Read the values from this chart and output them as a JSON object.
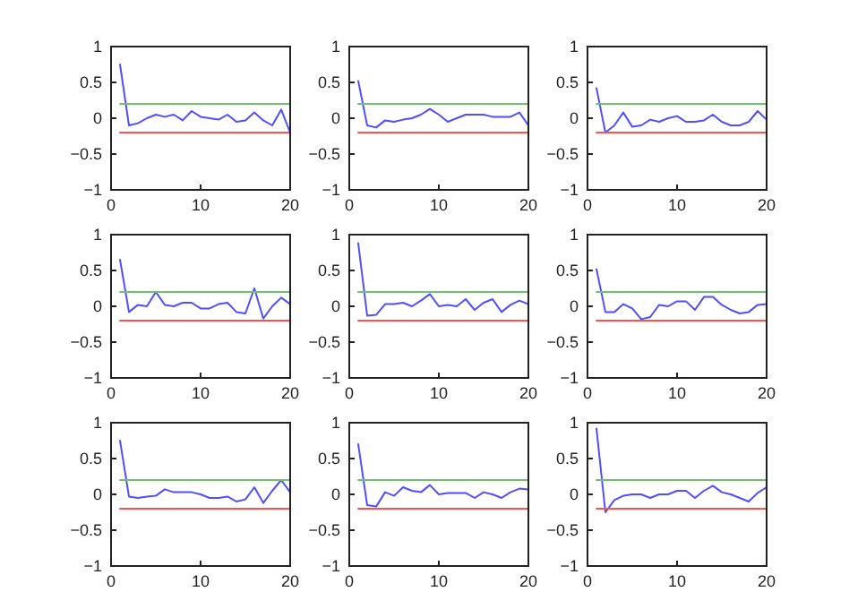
{
  "chart_data": [
    {
      "type": "line",
      "xlim": [
        0,
        20
      ],
      "xticks": [
        0,
        10,
        20
      ],
      "ylim": [
        -1,
        1
      ],
      "yticks": [
        -1,
        -0.5,
        0,
        0.5,
        1
      ],
      "series": [
        {
          "color": "#4f4fff",
          "x": [
            1,
            2,
            3,
            4,
            5,
            6,
            7,
            8,
            9,
            10,
            11,
            12,
            13,
            14,
            15,
            16,
            17,
            18,
            19,
            20
          ],
          "values": [
            0.75,
            -0.1,
            -0.07,
            0.0,
            0.05,
            0.02,
            0.05,
            -0.03,
            0.1,
            0.02,
            0.0,
            -0.02,
            0.05,
            -0.05,
            -0.03,
            0.08,
            -0.03,
            -0.1,
            0.12,
            -0.2
          ]
        },
        {
          "color": "#70c070",
          "x": [
            1,
            20
          ],
          "values": [
            0.2,
            0.2
          ]
        },
        {
          "color": "#ff5050",
          "x": [
            1,
            20
          ],
          "values": [
            -0.2,
            -0.2
          ]
        }
      ]
    },
    {
      "type": "line",
      "xlim": [
        0,
        20
      ],
      "xticks": [
        0,
        10,
        20
      ],
      "ylim": [
        -1,
        1
      ],
      "yticks": [
        -1,
        -0.5,
        0,
        0.5,
        1
      ],
      "series": [
        {
          "color": "#4f4fff",
          "x": [
            1,
            2,
            3,
            4,
            5,
            6,
            7,
            8,
            9,
            10,
            11,
            12,
            13,
            14,
            15,
            16,
            17,
            18,
            19,
            20
          ],
          "values": [
            0.52,
            -0.1,
            -0.13,
            -0.03,
            -0.05,
            -0.02,
            0.0,
            0.05,
            0.13,
            0.05,
            -0.05,
            0.0,
            0.05,
            0.05,
            0.05,
            0.02,
            0.02,
            0.02,
            0.08,
            -0.1
          ]
        },
        {
          "color": "#70c070",
          "x": [
            1,
            20
          ],
          "values": [
            0.2,
            0.2
          ]
        },
        {
          "color": "#ff5050",
          "x": [
            1,
            20
          ],
          "values": [
            -0.2,
            -0.2
          ]
        }
      ]
    },
    {
      "type": "line",
      "xlim": [
        0,
        20
      ],
      "xticks": [
        0,
        10,
        20
      ],
      "ylim": [
        -1,
        1
      ],
      "yticks": [
        -1,
        -0.5,
        0,
        0.5,
        1
      ],
      "series": [
        {
          "color": "#4f4fff",
          "x": [
            1,
            2,
            3,
            4,
            5,
            6,
            7,
            8,
            9,
            10,
            11,
            12,
            13,
            14,
            15,
            16,
            17,
            18,
            19,
            20
          ],
          "values": [
            0.42,
            -0.2,
            -0.1,
            0.08,
            -0.12,
            -0.1,
            -0.02,
            -0.05,
            0.0,
            0.03,
            -0.05,
            -0.05,
            -0.03,
            0.05,
            -0.05,
            -0.1,
            -0.1,
            -0.05,
            0.1,
            -0.02
          ]
        },
        {
          "color": "#70c070",
          "x": [
            1,
            20
          ],
          "values": [
            0.2,
            0.2
          ]
        },
        {
          "color": "#ff5050",
          "x": [
            1,
            20
          ],
          "values": [
            -0.2,
            -0.2
          ]
        }
      ]
    },
    {
      "type": "line",
      "xlim": [
        0,
        20
      ],
      "xticks": [
        0,
        10,
        20
      ],
      "ylim": [
        -1,
        1
      ],
      "yticks": [
        -1,
        -0.5,
        0,
        0.5,
        1
      ],
      "series": [
        {
          "color": "#4f4fff",
          "x": [
            1,
            2,
            3,
            4,
            5,
            6,
            7,
            8,
            9,
            10,
            11,
            12,
            13,
            14,
            15,
            16,
            17,
            18,
            19,
            20
          ],
          "values": [
            0.65,
            -0.08,
            0.02,
            0.0,
            0.2,
            0.02,
            0.0,
            0.05,
            0.05,
            -0.03,
            -0.03,
            0.03,
            0.05,
            -0.08,
            -0.1,
            0.25,
            -0.17,
            0.0,
            0.12,
            0.03
          ]
        },
        {
          "color": "#70c070",
          "x": [
            1,
            20
          ],
          "values": [
            0.2,
            0.2
          ]
        },
        {
          "color": "#ff5050",
          "x": [
            1,
            20
          ],
          "values": [
            -0.2,
            -0.2
          ]
        }
      ]
    },
    {
      "type": "line",
      "xlim": [
        0,
        20
      ],
      "xticks": [
        0,
        10,
        20
      ],
      "ylim": [
        -1,
        1
      ],
      "yticks": [
        -1,
        -0.5,
        0,
        0.5,
        1
      ],
      "series": [
        {
          "color": "#4f4fff",
          "x": [
            1,
            2,
            3,
            4,
            5,
            6,
            7,
            8,
            9,
            10,
            11,
            12,
            13,
            14,
            15,
            16,
            17,
            18,
            19,
            20
          ],
          "values": [
            0.88,
            -0.13,
            -0.12,
            0.03,
            0.03,
            0.05,
            0.0,
            0.08,
            0.17,
            0.0,
            0.02,
            0.0,
            0.1,
            -0.05,
            0.05,
            0.1,
            -0.08,
            0.02,
            0.08,
            0.03
          ]
        },
        {
          "color": "#70c070",
          "x": [
            1,
            20
          ],
          "values": [
            0.2,
            0.2
          ]
        },
        {
          "color": "#ff5050",
          "x": [
            1,
            20
          ],
          "values": [
            -0.2,
            -0.2
          ]
        }
      ]
    },
    {
      "type": "line",
      "xlim": [
        0,
        20
      ],
      "xticks": [
        0,
        10,
        20
      ],
      "ylim": [
        -1,
        1
      ],
      "yticks": [
        -1,
        -0.5,
        0,
        0.5,
        1
      ],
      "series": [
        {
          "color": "#4f4fff",
          "x": [
            1,
            2,
            3,
            4,
            5,
            6,
            7,
            8,
            9,
            10,
            11,
            12,
            13,
            14,
            15,
            16,
            17,
            18,
            19,
            20
          ],
          "values": [
            0.52,
            -0.08,
            -0.08,
            0.03,
            -0.03,
            -0.18,
            -0.15,
            0.02,
            0.0,
            0.07,
            0.07,
            -0.05,
            0.13,
            0.13,
            0.02,
            -0.05,
            -0.1,
            -0.08,
            0.02,
            0.03
          ]
        },
        {
          "color": "#70c070",
          "x": [
            1,
            20
          ],
          "values": [
            0.2,
            0.2
          ]
        },
        {
          "color": "#ff5050",
          "x": [
            1,
            20
          ],
          "values": [
            -0.2,
            -0.2
          ]
        }
      ]
    },
    {
      "type": "line",
      "xlim": [
        0,
        20
      ],
      "xticks": [
        0,
        10,
        20
      ],
      "ylim": [
        -1,
        1
      ],
      "yticks": [
        -1,
        -0.5,
        0,
        0.5,
        1
      ],
      "series": [
        {
          "color": "#4f4fff",
          "x": [
            1,
            2,
            3,
            4,
            5,
            6,
            7,
            8,
            9,
            10,
            11,
            12,
            13,
            14,
            15,
            16,
            17,
            18,
            19,
            20
          ],
          "values": [
            0.75,
            -0.03,
            -0.05,
            -0.03,
            -0.02,
            0.07,
            0.03,
            0.03,
            0.03,
            0.0,
            -0.05,
            -0.05,
            -0.03,
            -0.1,
            -0.07,
            0.1,
            -0.12,
            0.05,
            0.2,
            0.03
          ]
        },
        {
          "color": "#70c070",
          "x": [
            1,
            20
          ],
          "values": [
            0.2,
            0.2
          ]
        },
        {
          "color": "#ff5050",
          "x": [
            1,
            20
          ],
          "values": [
            -0.2,
            -0.2
          ]
        }
      ]
    },
    {
      "type": "line",
      "xlim": [
        0,
        20
      ],
      "xticks": [
        0,
        10,
        20
      ],
      "ylim": [
        -1,
        1
      ],
      "yticks": [
        -1,
        -0.5,
        0,
        0.5,
        1
      ],
      "series": [
        {
          "color": "#4f4fff",
          "x": [
            1,
            2,
            3,
            4,
            5,
            6,
            7,
            8,
            9,
            10,
            11,
            12,
            13,
            14,
            15,
            16,
            17,
            18,
            19,
            20
          ],
          "values": [
            0.7,
            -0.15,
            -0.17,
            0.03,
            -0.02,
            0.1,
            0.05,
            0.03,
            0.13,
            0.0,
            0.02,
            0.02,
            0.02,
            -0.05,
            0.03,
            0.0,
            -0.05,
            0.03,
            0.08,
            0.07
          ]
        },
        {
          "color": "#70c070",
          "x": [
            1,
            20
          ],
          "values": [
            0.2,
            0.2
          ]
        },
        {
          "color": "#ff5050",
          "x": [
            1,
            20
          ],
          "values": [
            -0.2,
            -0.2
          ]
        }
      ]
    },
    {
      "type": "line",
      "xlim": [
        0,
        20
      ],
      "xticks": [
        0,
        10,
        20
      ],
      "ylim": [
        -1,
        1
      ],
      "yticks": [
        -1,
        -0.5,
        0,
        0.5,
        1
      ],
      "series": [
        {
          "color": "#4f4fff",
          "x": [
            1,
            2,
            3,
            4,
            5,
            6,
            7,
            8,
            9,
            10,
            11,
            12,
            13,
            14,
            15,
            16,
            17,
            18,
            19,
            20
          ],
          "values": [
            0.92,
            -0.25,
            -0.08,
            -0.02,
            0.0,
            0.0,
            -0.05,
            0.0,
            0.0,
            0.05,
            0.05,
            -0.05,
            0.05,
            0.12,
            0.03,
            0.0,
            -0.05,
            -0.1,
            0.02,
            0.1
          ]
        },
        {
          "color": "#70c070",
          "x": [
            1,
            20
          ],
          "values": [
            0.2,
            0.2
          ]
        },
        {
          "color": "#ff5050",
          "x": [
            1,
            20
          ],
          "values": [
            -0.2,
            -0.2
          ]
        }
      ]
    }
  ]
}
